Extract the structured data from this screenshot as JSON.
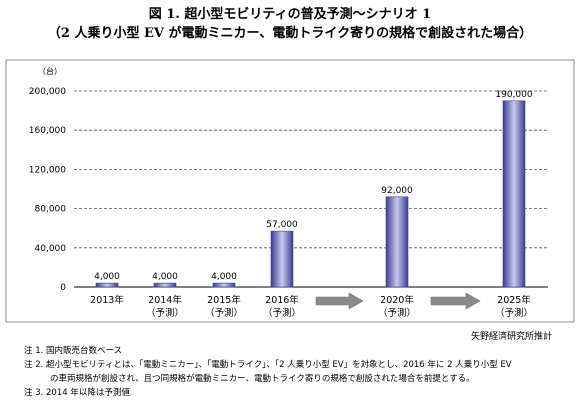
{
  "header": {
    "title_line1": "図 1. 超小型モビリティの普及予測～シナリオ 1",
    "title_line2": "（2 人乗り小型 EV が電動ミニカー、電動トライク寄りの規格で創設された場合）"
  },
  "chart_data": {
    "type": "bar",
    "unit_label": "（台）",
    "categories": [
      "2013年",
      "2014年\n（予測）",
      "2015年\n（予測）",
      "2016年\n（予測）",
      "2020年\n（予測）",
      "2025年\n（予測）"
    ],
    "values": [
      4000,
      4000,
      4000,
      57000,
      92000,
      190000
    ],
    "value_labels": [
      "4,000",
      "4,000",
      "4,000",
      "57,000",
      "92,000",
      "190,000"
    ],
    "ylim": [
      0,
      200000
    ],
    "yticks": [
      0,
      40000,
      80000,
      120000,
      160000,
      200000
    ],
    "ytick_labels": [
      "0",
      "40,000",
      "80,000",
      "120,000",
      "160,000",
      "200,000"
    ],
    "grid": true,
    "arrows_between": [
      [
        3,
        4
      ],
      [
        4,
        5
      ]
    ],
    "colors": {
      "bar_dark": "#3d3f8f",
      "bar_light": "#c8c9ef",
      "arrow": "#8a8a8a"
    }
  },
  "source": "矢野経済研究所推計",
  "notes": [
    "注 1. 国内販売台数ベース",
    "注 2. 超小型モビリティとは、「電動ミニカー」、「電動トライク」、「2 人乗り小型 EV」を対象とし、2016 年に 2 人乗り小型 EV",
    "の車両規格が創設され、且つ同規格が電動ミニカー、電動トライク寄りの規格で創設された場合を前提とする。",
    "注 3. 2014 年以降は予測値"
  ]
}
